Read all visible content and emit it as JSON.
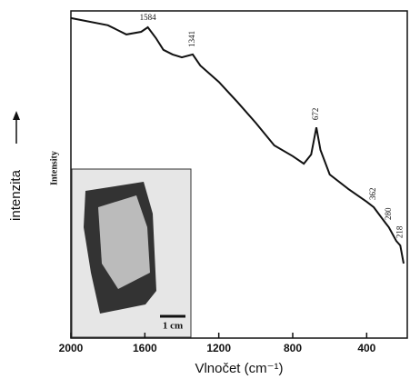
{
  "chart_data": {
    "type": "line",
    "xlabel": "Vlnočet (cm⁻¹)",
    "ylabel": "intenzita",
    "ylabel_en": "Intensity",
    "inset_scale": "1 cm",
    "x": [
      2000,
      1800,
      1700,
      1620,
      1584,
      1540,
      1500,
      1450,
      1400,
      1341,
      1300,
      1200,
      1100,
      1000,
      900,
      800,
      740,
      700,
      672,
      650,
      600,
      500,
      400,
      362,
      300,
      280,
      240,
      218,
      200
    ],
    "values": [
      97.8,
      95.6,
      92.8,
      93.6,
      95,
      91.7,
      88.1,
      86.7,
      85.8,
      86.7,
      83.3,
      78.3,
      72.2,
      65.8,
      58.9,
      55.6,
      53.3,
      56.1,
      64.4,
      57.5,
      50,
      45.6,
      41.7,
      40,
      35.3,
      33.9,
      29.7,
      28.3,
      22.8
    ],
    "color": "#111111",
    "peaks": [
      1584,
      1341,
      672,
      362,
      280,
      218
    ],
    "xlim": [
      2000,
      200
    ],
    "xticks": [
      2000,
      1600,
      1200,
      800,
      400
    ],
    "ylim": [
      0,
      100
    ]
  }
}
